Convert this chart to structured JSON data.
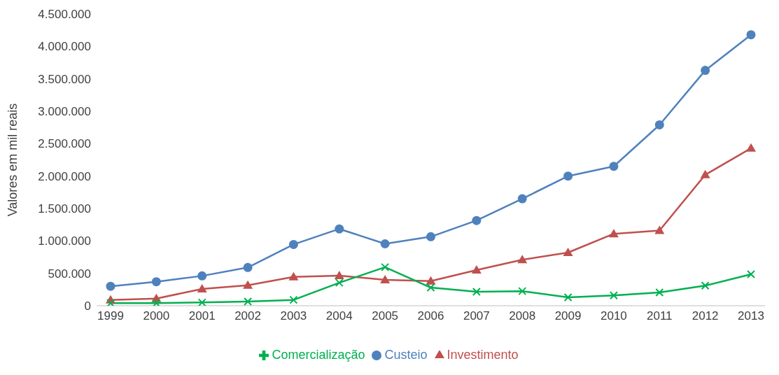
{
  "chart_data": {
    "type": "line",
    "ylabel": "Valores em mil reais",
    "categories": [
      "1999",
      "2000",
      "2001",
      "2002",
      "2003",
      "2004",
      "2005",
      "2006",
      "2007",
      "2008",
      "2009",
      "2010",
      "2011",
      "2012",
      "2013"
    ],
    "series": [
      {
        "name": "Custeio",
        "color": "#4f81bd",
        "marker": "circle",
        "values": [
          300000,
          370000,
          460000,
          590000,
          945000,
          1185000,
          955000,
          1065000,
          1315000,
          1650000,
          2000000,
          2150000,
          2790000,
          3630000,
          4180000
        ]
      },
      {
        "name": "Investimento",
        "color": "#c0504d",
        "marker": "triangle",
        "values": [
          90000,
          110000,
          260000,
          315000,
          445000,
          465000,
          400000,
          380000,
          550000,
          710000,
          820000,
          1110000,
          1160000,
          2020000,
          2430000
        ]
      },
      {
        "name": "Comercialização",
        "color": "#00b050",
        "marker": "cross",
        "values": [
          40000,
          40000,
          50000,
          65000,
          90000,
          355000,
          595000,
          280000,
          215000,
          225000,
          130000,
          160000,
          205000,
          310000,
          485000
        ]
      }
    ],
    "ylim": [
      0,
      4500000
    ],
    "yticks": [
      {
        "value": 0,
        "label": "0"
      },
      {
        "value": 500000,
        "label": "500.000"
      },
      {
        "value": 1000000,
        "label": "1.000.000"
      },
      {
        "value": 1500000,
        "label": "1.500.000"
      },
      {
        "value": 2000000,
        "label": "2.000.000"
      },
      {
        "value": 2500000,
        "label": "2.500.000"
      },
      {
        "value": 3000000,
        "label": "3.000.000"
      },
      {
        "value": 3500000,
        "label": "3.500.000"
      },
      {
        "value": 4000000,
        "label": "4.000.000"
      },
      {
        "value": 4500000,
        "label": "4.500.000"
      }
    ],
    "grid": false,
    "legend": "bottom",
    "line_style": "solid"
  }
}
